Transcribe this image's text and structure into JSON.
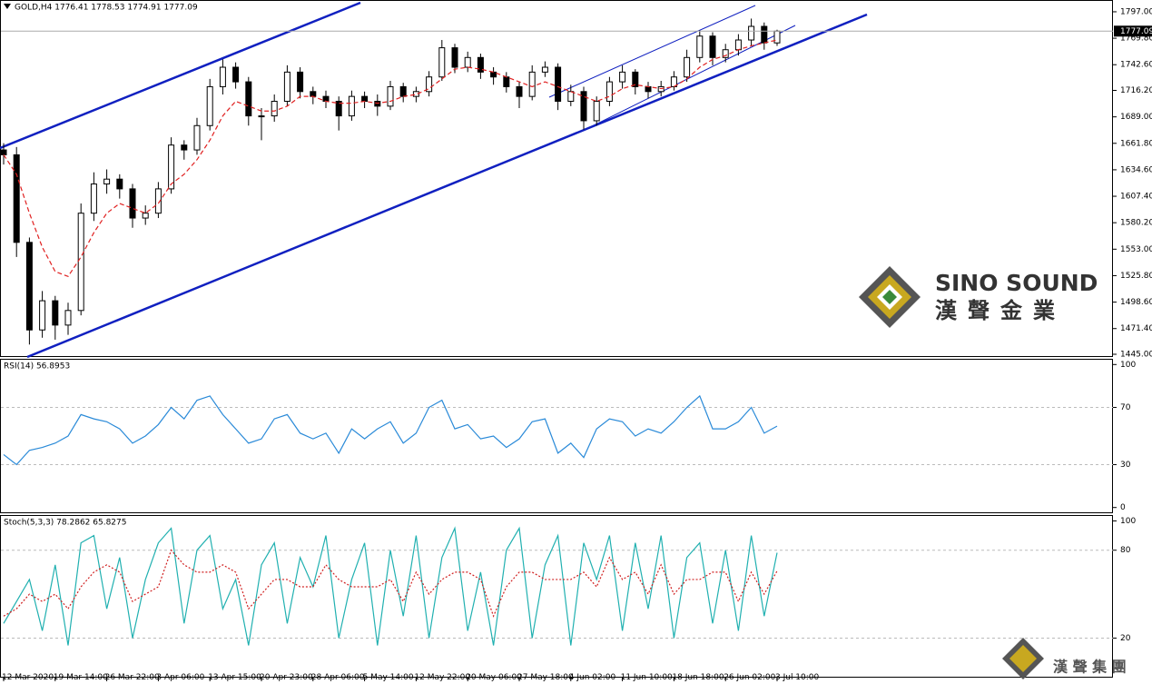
{
  "chart_data": [
    {
      "type": "candlestick",
      "header": "GOLD,H4 1776.41 1778.53 1774.91 1777.09",
      "categories": [
        "12 Mar 2020",
        null,
        null,
        null,
        "19 Mar 14:00",
        null,
        null,
        null,
        "26 Mar 22:00",
        null,
        null,
        null,
        "3 Apr 06:00",
        null,
        null,
        null,
        "13 Apr 15:00",
        null,
        null,
        null,
        "20 Apr 23:00",
        null,
        null,
        null,
        "28 Apr 06:00",
        null,
        null,
        null,
        "5 May 14:00",
        null,
        null,
        null,
        "12 May 22:00",
        null,
        null,
        null,
        "20 May 06:00",
        null,
        null,
        null,
        "27 May 18:00",
        null,
        null,
        null,
        "4 Jun 02:00",
        null,
        null,
        null,
        "11 Jun 10:00",
        null,
        null,
        null,
        "18 Jun 18:00",
        null,
        null,
        null,
        "26 Jun 02:00",
        null,
        null,
        null,
        "3 Jul 10:00"
      ],
      "open": [
        1655,
        1650,
        1560,
        1470,
        1500,
        1475,
        1490,
        1590,
        1620,
        1625,
        1615,
        1585,
        1590,
        1615,
        1660,
        1655,
        1680,
        1720,
        1740,
        1725,
        1690,
        1690,
        1705,
        1735,
        1715,
        1710,
        1705,
        1690,
        1710,
        1705,
        1700,
        1720,
        1710,
        1715,
        1730,
        1760,
        1740,
        1750,
        1735,
        1730,
        1720,
        1710,
        1735,
        1740,
        1705,
        1715,
        1685,
        1705,
        1725,
        1735,
        1720,
        1715,
        1720,
        1730,
        1750,
        1772,
        1750,
        1758,
        1768,
        1782,
        1765
      ],
      "high": [
        1662,
        1658,
        1565,
        1510,
        1505,
        1498,
        1600,
        1632,
        1635,
        1630,
        1620,
        1598,
        1622,
        1668,
        1665,
        1688,
        1728,
        1748,
        1745,
        1730,
        1698,
        1712,
        1742,
        1740,
        1720,
        1716,
        1710,
        1716,
        1715,
        1712,
        1726,
        1724,
        1720,
        1736,
        1768,
        1764,
        1756,
        1754,
        1740,
        1735,
        1725,
        1742,
        1746,
        1744,
        1722,
        1720,
        1710,
        1730,
        1742,
        1738,
        1725,
        1726,
        1736,
        1758,
        1778,
        1776,
        1764,
        1774,
        1790,
        1786,
        1778.53
      ],
      "low": [
        1640,
        1545,
        1455,
        1462,
        1460,
        1465,
        1485,
        1582,
        1610,
        1605,
        1575,
        1578,
        1585,
        1610,
        1645,
        1650,
        1675,
        1712,
        1718,
        1680,
        1665,
        1684,
        1700,
        1708,
        1702,
        1698,
        1675,
        1685,
        1698,
        1690,
        1696,
        1704,
        1704,
        1710,
        1726,
        1734,
        1735,
        1728,
        1722,
        1714,
        1698,
        1706,
        1730,
        1696,
        1700,
        1676,
        1680,
        1700,
        1718,
        1712,
        1708,
        1710,
        1716,
        1725,
        1745,
        1742,
        1745,
        1752,
        1762,
        1758,
        1762
      ],
      "close": [
        1650,
        1560,
        1470,
        1500,
        1475,
        1490,
        1590,
        1620,
        1625,
        1615,
        1585,
        1590,
        1615,
        1660,
        1655,
        1680,
        1720,
        1740,
        1725,
        1690,
        1690,
        1705,
        1735,
        1715,
        1710,
        1705,
        1690,
        1710,
        1705,
        1700,
        1720,
        1710,
        1715,
        1730,
        1760,
        1740,
        1750,
        1735,
        1730,
        1720,
        1710,
        1735,
        1740,
        1705,
        1715,
        1685,
        1705,
        1725,
        1735,
        1720,
        1715,
        1720,
        1730,
        1750,
        1772,
        1750,
        1758,
        1768,
        1782,
        1765,
        1777.09
      ],
      "moving_average": [
        1650,
        1630,
        1590,
        1555,
        1530,
        1525,
        1545,
        1570,
        1590,
        1600,
        1595,
        1590,
        1600,
        1620,
        1630,
        1645,
        1665,
        1690,
        1705,
        1700,
        1695,
        1695,
        1700,
        1710,
        1710,
        1705,
        1703,
        1703,
        1705,
        1703,
        1705,
        1710,
        1712,
        1718,
        1728,
        1738,
        1740,
        1738,
        1735,
        1730,
        1725,
        1720,
        1725,
        1720,
        1715,
        1710,
        1705,
        1710,
        1718,
        1722,
        1720,
        1718,
        1720,
        1728,
        1740,
        1748,
        1752,
        1758,
        1762,
        1765,
        1768
      ],
      "ma_color": "#e02020",
      "channel_color": "#1020c0",
      "current_price": 1777.09,
      "ylim": [
        1442.2,
        1809.1
      ],
      "yticks": [
        {
          "value": 1797,
          "label": "1797.00"
        },
        {
          "value": 1769.8,
          "label": "1769.80"
        },
        {
          "value": 1742.6,
          "label": "1742.60"
        },
        {
          "value": 1716.2,
          "label": "1716.20"
        },
        {
          "value": 1689,
          "label": "1689.00"
        },
        {
          "value": 1661.8,
          "label": "1661.80"
        },
        {
          "value": 1634.6,
          "label": "1634.60"
        },
        {
          "value": 1607.4,
          "label": "1607.40"
        },
        {
          "value": 1580.2,
          "label": "1580.20"
        },
        {
          "value": 1553,
          "label": "1553.00"
        },
        {
          "value": 1525.8,
          "label": "1525.80"
        },
        {
          "value": 1498.6,
          "label": "1498.60"
        },
        {
          "value": 1471.4,
          "label": "1471.40"
        },
        {
          "value": 1445,
          "label": "1445.00"
        }
      ],
      "brand": {
        "name": "SINO SOUND",
        "chinese": "漢聲金業",
        "footer": "漢 聲 集 團"
      }
    },
    {
      "type": "line",
      "title": "RSI(14) 56.8953",
      "color": "#2a8ad8",
      "values": [
        37,
        30,
        40,
        42,
        45,
        50,
        65,
        62,
        60,
        55,
        45,
        50,
        58,
        70,
        62,
        75,
        78,
        65,
        55,
        45,
        48,
        62,
        65,
        52,
        48,
        52,
        38,
        55,
        48,
        55,
        60,
        45,
        52,
        70,
        75,
        55,
        58,
        48,
        50,
        42,
        48,
        60,
        62,
        38,
        45,
        35,
        55,
        62,
        60,
        50,
        55,
        52,
        60,
        70,
        78,
        55,
        55,
        60,
        70,
        52,
        56.8953
      ],
      "ylim": [
        -4,
        104
      ],
      "yticks": [
        100,
        70,
        30,
        0
      ],
      "levels": [
        70,
        30
      ]
    },
    {
      "type": "stochastic",
      "title": "Stoch(5,3,3) 78.2862 65.8275",
      "k_color": "#20b0b0",
      "d_color": "#d02020",
      "k_values": [
        30,
        45,
        60,
        25,
        70,
        15,
        85,
        90,
        40,
        75,
        20,
        60,
        85,
        95,
        30,
        80,
        90,
        40,
        60,
        15,
        70,
        85,
        30,
        75,
        55,
        90,
        20,
        60,
        85,
        15,
        80,
        35,
        90,
        20,
        75,
        95,
        25,
        65,
        15,
        80,
        95,
        20,
        70,
        90,
        15,
        85,
        60,
        90,
        25,
        85,
        40,
        90,
        20,
        75,
        85,
        30,
        80,
        25,
        90,
        35,
        78.2862
      ],
      "d_values": [
        35,
        40,
        50,
        45,
        50,
        40,
        55,
        65,
        70,
        65,
        45,
        50,
        55,
        80,
        70,
        65,
        65,
        70,
        65,
        40,
        50,
        60,
        60,
        55,
        55,
        70,
        60,
        55,
        55,
        55,
        60,
        45,
        65,
        50,
        60,
        65,
        65,
        60,
        35,
        55,
        65,
        65,
        60,
        60,
        60,
        65,
        55,
        75,
        60,
        65,
        50,
        70,
        50,
        60,
        60,
        65,
        65,
        45,
        65,
        50,
        65.8275
      ],
      "ylim": [
        -7,
        104
      ],
      "yticks": [
        100,
        80,
        20
      ],
      "levels": [
        80,
        20
      ]
    }
  ]
}
